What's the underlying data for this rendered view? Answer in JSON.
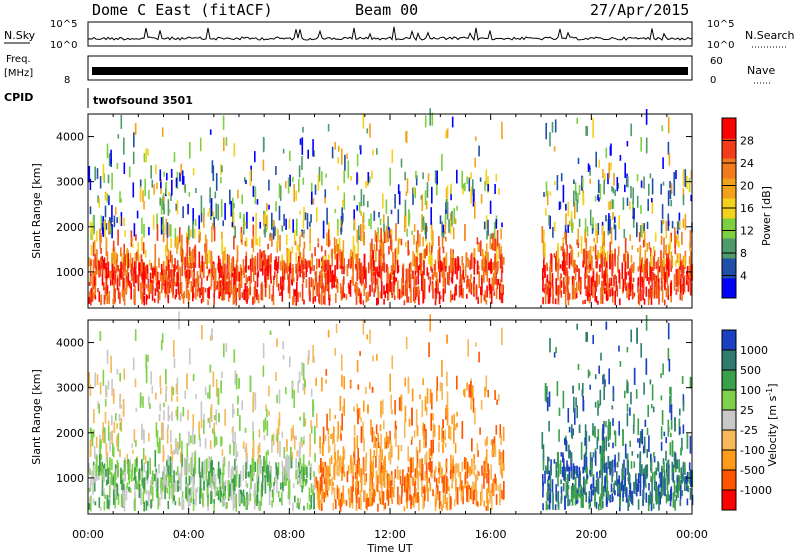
{
  "header": {
    "title": "Dome C East (fitACF)",
    "beam": "Beam 00",
    "date": "27/Apr/2015"
  },
  "top_panels": {
    "nsky_label": "N.Sky",
    "nsky_top": "10^5",
    "nsky_bottom": "10^0",
    "nsearch_label": "N.Search",
    "nsearch_top": "10^5",
    "nsearch_bottom": "10^0",
    "freq_label": "Freq.",
    "freq_unit": "[MHz]",
    "freq_tick": "8",
    "nave_label": "Nave",
    "nave_top": "60",
    "nave_bottom": "0",
    "cpid_label": "CPID",
    "cpid_value": "twofsound 3501"
  },
  "colors": {
    "power": [
      "#0000ff",
      "#1f4fa8",
      "#4f9a6a",
      "#7ccf3f",
      "#f2d21a",
      "#f2a21a",
      "#f27a1a",
      "#f23c1a",
      "#ff0000"
    ],
    "velocity": [
      "#ff0000",
      "#ff5500",
      "#ff9a1a",
      "#f5b95a",
      "#c8c8c8",
      "#7fd04a",
      "#3aa04a",
      "#2e7d6e",
      "#1a3fc0"
    ]
  },
  "chart_data": [
    {
      "type": "heatmap",
      "name_in_chart": "power",
      "ylabel": "Slant Range [km]",
      "xlabel": "Time UT",
      "x_ticks": [
        "00:00",
        "04:00",
        "08:00",
        "12:00",
        "16:00",
        "20:00",
        "00:00"
      ],
      "y_ticks": [
        1000,
        2000,
        3000,
        4000
      ],
      "ylim": [
        200,
        4500
      ],
      "xlim_hours": [
        0,
        24
      ],
      "colorbar": {
        "label": "Power [dB]",
        "ticks": [
          4,
          8,
          12,
          16,
          20,
          24,
          28
        ],
        "range": [
          0,
          32
        ]
      },
      "data_gap_hours": [
        16.5,
        18
      ]
    },
    {
      "type": "heatmap",
      "name_in_chart": "velocity",
      "ylabel": "Slant Range [km]",
      "xlabel": "Time UT",
      "x_ticks": [
        "00:00",
        "04:00",
        "08:00",
        "12:00",
        "16:00",
        "20:00",
        "00:00"
      ],
      "y_ticks": [
        1000,
        2000,
        3000,
        4000
      ],
      "ylim": [
        200,
        4500
      ],
      "xlim_hours": [
        0,
        24
      ],
      "colorbar": {
        "label": "Velocity [m s-1]",
        "ticks": [
          "1000",
          "500",
          "100",
          "25",
          "-25",
          "-100",
          "-500",
          "-1000"
        ]
      },
      "data_gap_hours": [
        16.5,
        18
      ]
    }
  ],
  "x_axis": {
    "label": "Time UT",
    "ticks": [
      "00:00",
      "04:00",
      "08:00",
      "12:00",
      "16:00",
      "20:00",
      "00:00"
    ]
  }
}
